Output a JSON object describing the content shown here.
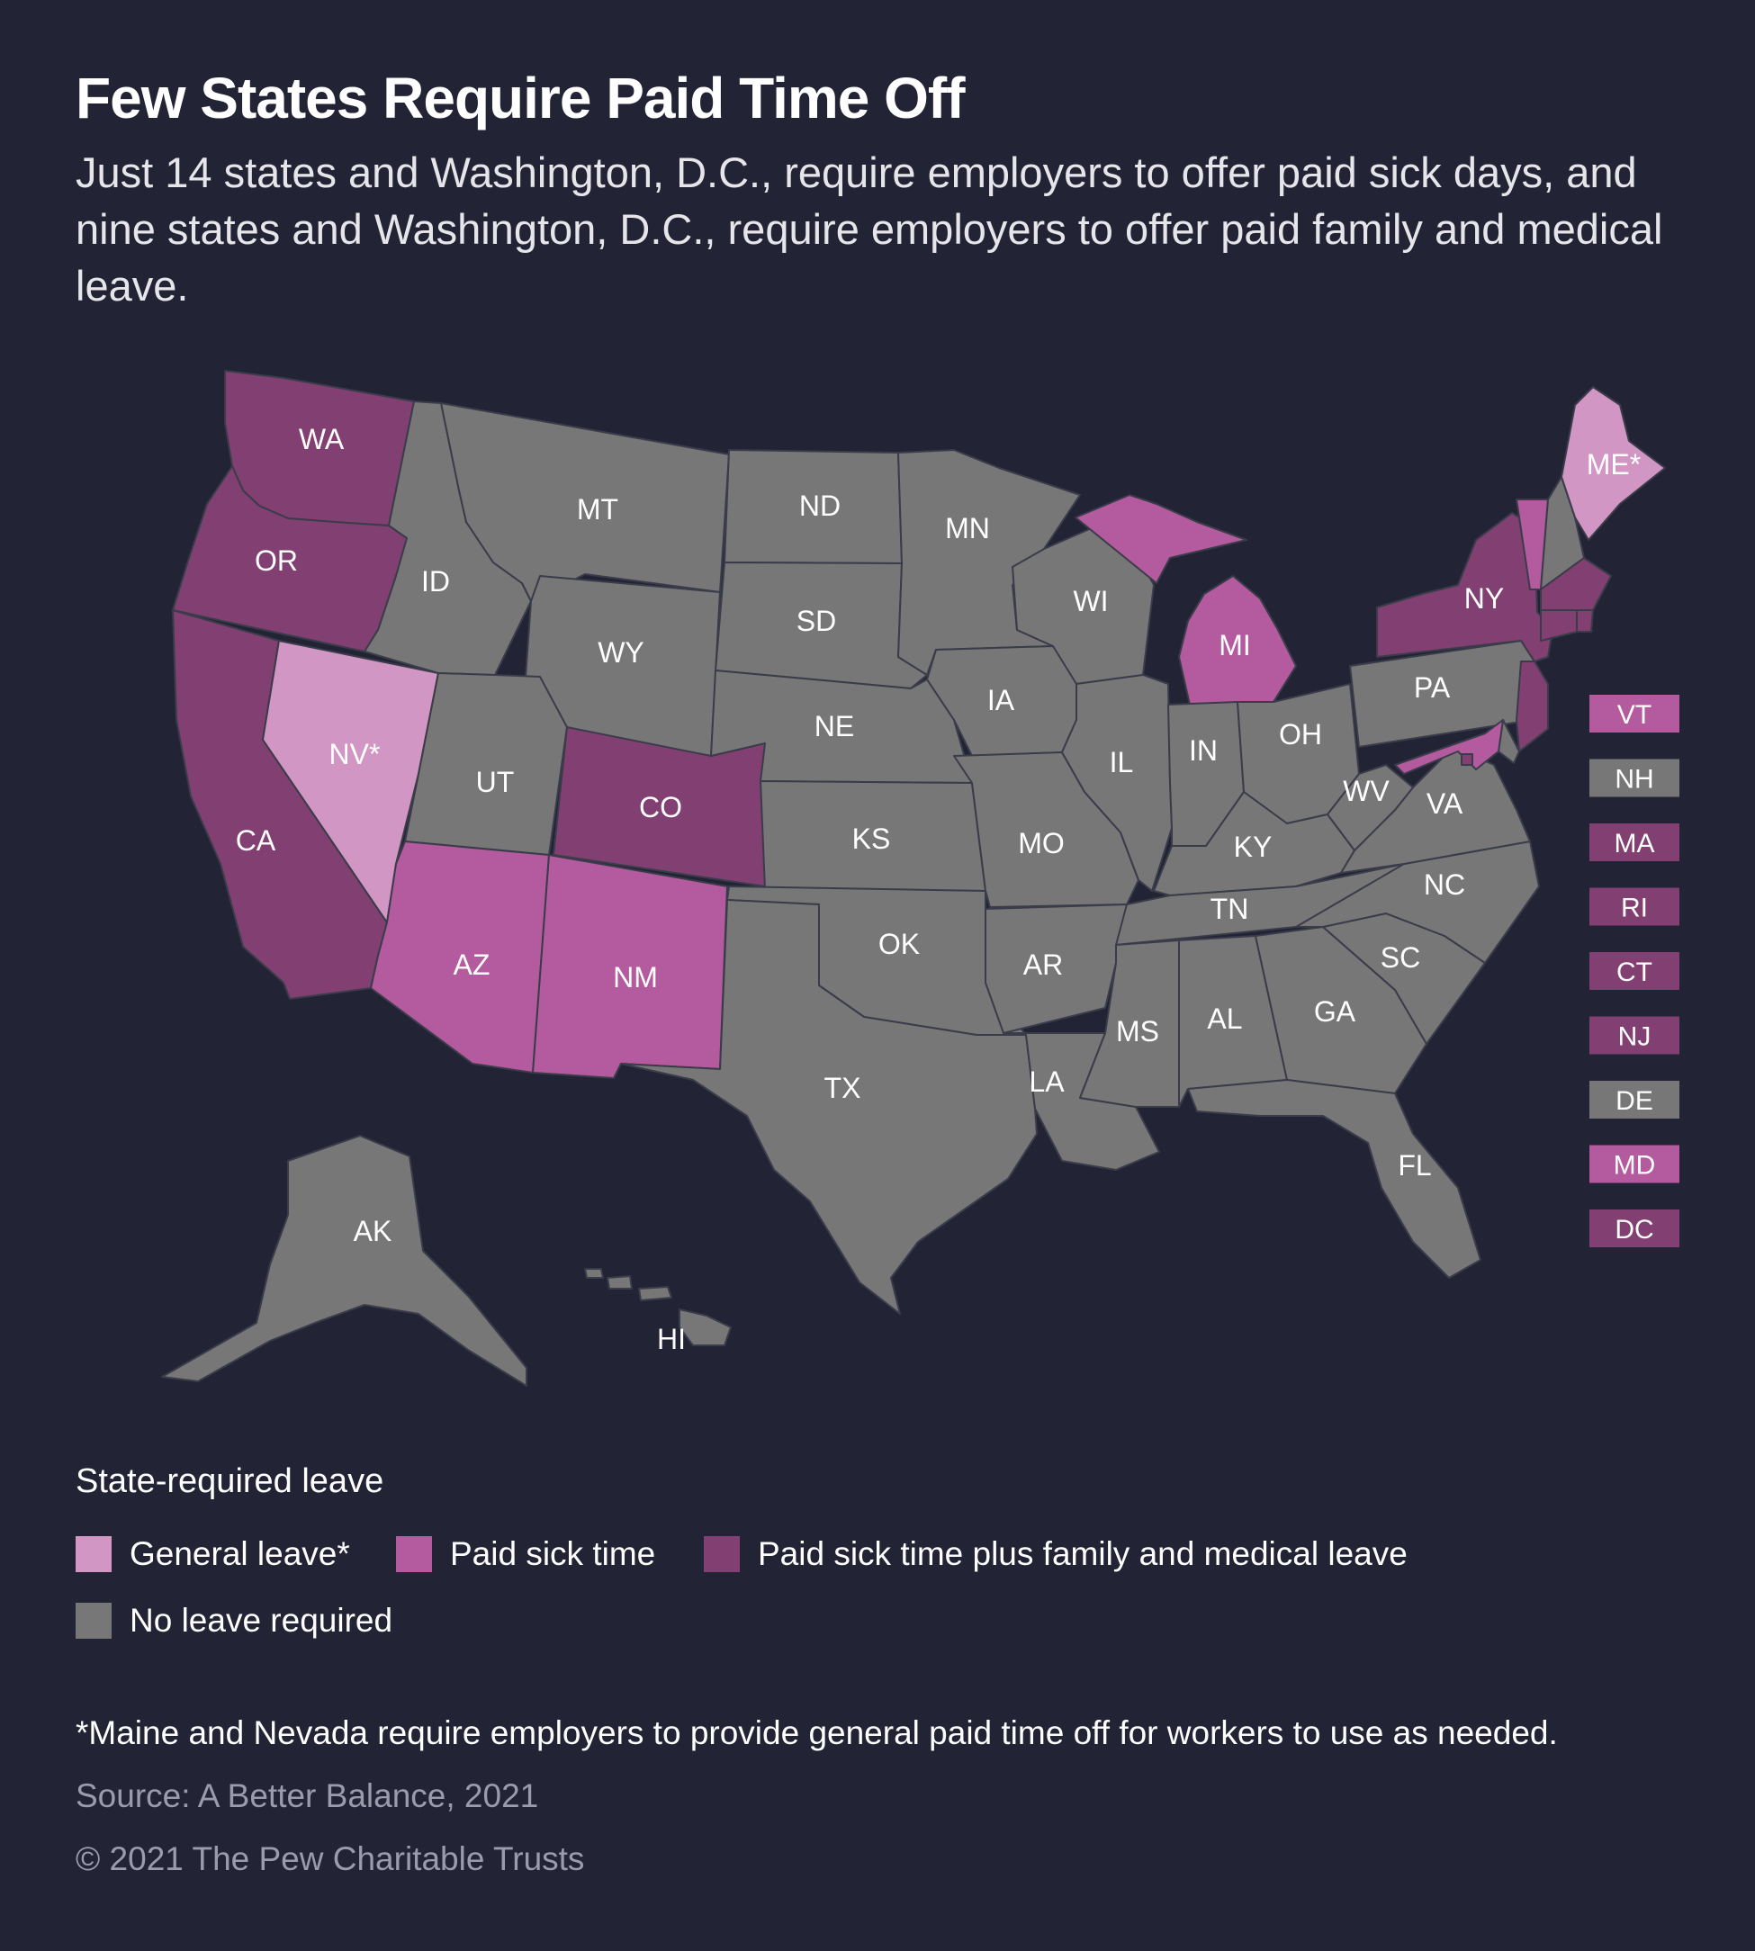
{
  "title": "Few States Require Paid Time Off",
  "subtitle": "Just 14 states and Washington, D.C., require employers to offer paid sick days, and nine states and Washington, D.C., require employers to offer paid family and medical leave.",
  "colors": {
    "general": "#d196c3",
    "sick": "#b45a9e",
    "sick_family": "#813f72",
    "none": "#777777",
    "background": "#222435"
  },
  "legend": {
    "title": "State-required leave",
    "items": [
      {
        "key": "general",
        "label": "General leave*"
      },
      {
        "key": "sick",
        "label": "Paid sick time"
      },
      {
        "key": "sick_family",
        "label": "Paid sick time plus family and medical leave"
      },
      {
        "key": "none",
        "label": "No leave required"
      }
    ]
  },
  "states": {
    "WA": "sick_family",
    "OR": "sick_family",
    "CA": "sick_family",
    "NV": "general",
    "ID": "none",
    "MT": "none",
    "WY": "none",
    "UT": "none",
    "CO": "sick_family",
    "AZ": "sick",
    "NM": "sick",
    "ND": "none",
    "SD": "none",
    "NE": "none",
    "KS": "none",
    "OK": "none",
    "TX": "none",
    "MN": "none",
    "IA": "none",
    "MO": "none",
    "AR": "none",
    "LA": "none",
    "WI": "none",
    "IL": "none",
    "MI": "sick",
    "IN": "none",
    "OH": "none",
    "KY": "none",
    "TN": "none",
    "MS": "none",
    "AL": "none",
    "GA": "none",
    "FL": "none",
    "SC": "none",
    "NC": "none",
    "VA": "none",
    "WV": "none",
    "PA": "none",
    "NY": "sick_family",
    "VT": "sick",
    "NH": "none",
    "ME": "general",
    "MA": "sick_family",
    "RI": "sick_family",
    "CT": "sick_family",
    "NJ": "sick_family",
    "DE": "none",
    "MD": "sick",
    "DC": "sick_family",
    "AK": "none",
    "HI": "none"
  },
  "map_labels": {
    "WA": "WA",
    "OR": "OR",
    "CA": "CA",
    "NV": "NV*",
    "ID": "ID",
    "MT": "MT",
    "WY": "WY",
    "UT": "UT",
    "CO": "CO",
    "AZ": "AZ",
    "NM": "NM",
    "ND": "ND",
    "SD": "SD",
    "NE": "NE",
    "KS": "KS",
    "OK": "OK",
    "TX": "TX",
    "MN": "MN",
    "IA": "IA",
    "MO": "MO",
    "AR": "AR",
    "LA": "LA",
    "WI": "WI",
    "IL": "IL",
    "MI": "MI",
    "IN": "IN",
    "OH": "OH",
    "KY": "KY",
    "TN": "TN",
    "MS": "MS",
    "AL": "AL",
    "GA": "GA",
    "FL": "FL",
    "SC": "SC",
    "NC": "NC",
    "VA": "VA",
    "WV": "WV",
    "PA": "PA",
    "NY": "NY",
    "ME": "ME*",
    "AK": "AK",
    "HI": "HI"
  },
  "small_state_boxes": [
    {
      "code": "VT",
      "label": "VT"
    },
    {
      "code": "NH",
      "label": "NH"
    },
    {
      "code": "MA",
      "label": "MA"
    },
    {
      "code": "RI",
      "label": "RI"
    },
    {
      "code": "CT",
      "label": "CT"
    },
    {
      "code": "NJ",
      "label": "NJ"
    },
    {
      "code": "DE",
      "label": "DE"
    },
    {
      "code": "MD",
      "label": "MD"
    },
    {
      "code": "DC",
      "label": "DC"
    }
  ],
  "footnote": "*Maine and Nevada require employers to provide general paid time off for workers to use as needed.",
  "source": "Source: A Better Balance, 2021",
  "copyright": "© 2021 The Pew Charitable Trusts"
}
